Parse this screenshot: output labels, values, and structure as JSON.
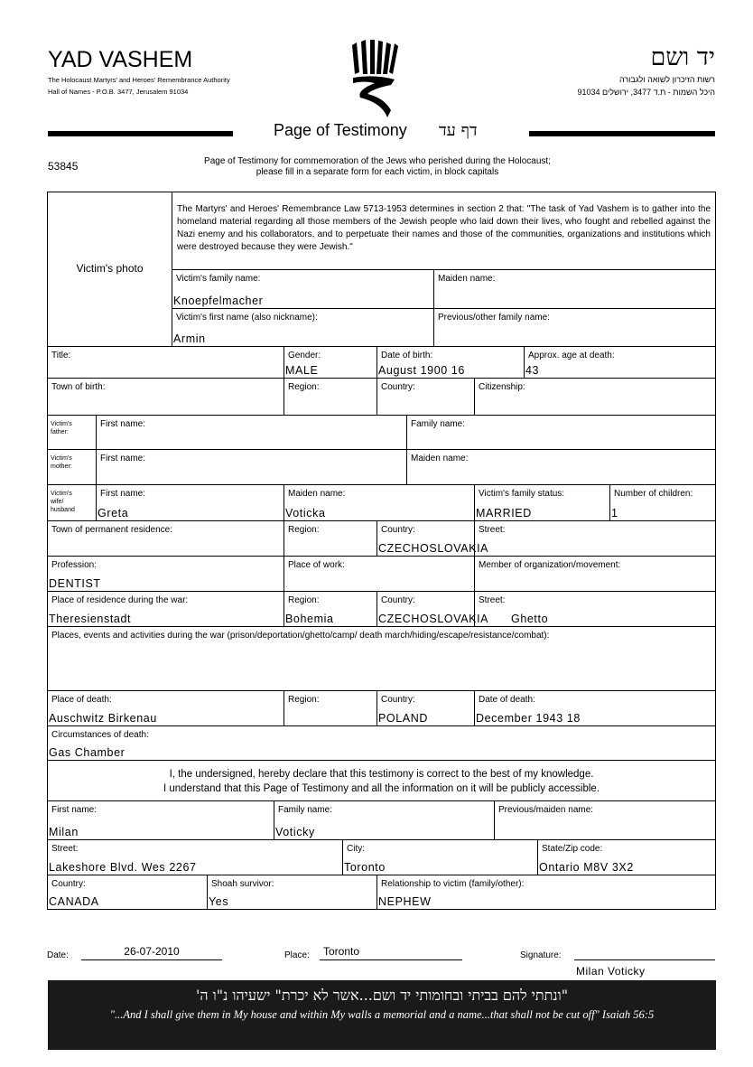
{
  "header": {
    "org_name": "YAD VASHEM",
    "org_sub1": "The Holocaust Martyrs' and Heroes' Remembrance Authority",
    "org_sub2": "Hall of Names - P.O.B. 3477, Jerusalem 91034",
    "org_name_he": "יד ושם",
    "org_sub1_he": "רשות הזיכרון לשואה ולגבורה",
    "org_sub2_he": "היכל השמות - ת.ד 3477, ירושלים 91034",
    "title": "Page of Testimony",
    "title_he": "דף עד",
    "form_number": "53845",
    "intro_line1": "Page of Testimony for commemoration of the Jews who perished during the Holocaust;",
    "intro_line2": "please fill in a separate form for each victim, in block capitals"
  },
  "victim": {
    "photo_label": "Victim's photo",
    "law_text": "The Martyrs' and Heroes' Remembrance Law 5713-1953 determines in section 2 that: \"The task of Yad Vashem is to gather into the homeland material regarding all those members of the Jewish people who laid down their lives, who fought and rebelled against the Nazi enemy and his collaborators, and to perpetuate their names and those of the communities, organizations and institutions which were destroyed because they were Jewish.\"",
    "family_name": {
      "label": "Victim's family name:",
      "value": "Knoepfelmacher"
    },
    "maiden_name": {
      "label": "Maiden name:",
      "value": ""
    },
    "first_name": {
      "label": "Victim's first name (also nickname):",
      "value": "Armin"
    },
    "previous_name": {
      "label": "Previous/other family name:",
      "value": ""
    },
    "title": {
      "label": "Title:",
      "value": ""
    },
    "gender": {
      "label": "Gender:",
      "value": "MALE"
    },
    "dob": {
      "label": "Date of birth:",
      "value": "August 1900 16"
    },
    "age": {
      "label": "Approx. age at death:",
      "value": "43"
    },
    "town_birth": {
      "label": "Town of birth:",
      "value": ""
    },
    "region_birth": {
      "label": "Region:",
      "value": ""
    },
    "country_birth": {
      "label": "Country:",
      "value": ""
    },
    "citizenship": {
      "label": "Citizenship:",
      "value": ""
    }
  },
  "family": {
    "father_label": "Victim's father:",
    "father_first": {
      "label": "First name:",
      "value": ""
    },
    "father_family": {
      "label": "Family name:",
      "value": ""
    },
    "mother_label": "Victim's mother:",
    "mother_first": {
      "label": "First name:",
      "value": ""
    },
    "mother_maiden": {
      "label": "Maiden name:",
      "value": ""
    },
    "spouse_label": "Victim's wife/ husband",
    "spouse_first": {
      "label": "First name:",
      "value": "Greta"
    },
    "spouse_maiden": {
      "label": "Maiden name:",
      "value": "Voticka"
    },
    "status": {
      "label": "Victim's family status:",
      "value": "MARRIED"
    },
    "children": {
      "label": "Number of children:",
      "value": "1"
    }
  },
  "residence": {
    "town": {
      "label": "Town of permanent residence:",
      "value": ""
    },
    "region": {
      "label": "Region:",
      "value": ""
    },
    "country": {
      "label": "Country:",
      "value": "CZECHOSLOVAKIA"
    },
    "street": {
      "label": "Street:",
      "value": ""
    },
    "profession": {
      "label": "Profession:",
      "value": "DENTIST"
    },
    "work": {
      "label": "Place of work:",
      "value": ""
    },
    "member": {
      "label": "Member of organization/movement:",
      "value": ""
    },
    "war_town": {
      "label": "Place of residence during the war:",
      "value": "Theresienstadt"
    },
    "war_region": {
      "label": "Region:",
      "value": "Bohemia"
    },
    "war_country": {
      "label": "Country:",
      "value": "CZECHOSLOVAKIA"
    },
    "war_street": {
      "label": "Street:",
      "value": "Ghetto"
    },
    "events": {
      "label": "Places, events and activities during the war (prison/deportation/ghetto/camp/ death march/hiding/escape/resistance/combat):",
      "value": ""
    }
  },
  "death": {
    "place": {
      "label": "Place of death:",
      "value": "Auschwitz Birkenau"
    },
    "region": {
      "label": "Region:",
      "value": ""
    },
    "country": {
      "label": "Country:",
      "value": "POLAND"
    },
    "date": {
      "label": "Date of death:",
      "value": "December 1943 18"
    },
    "circumstances": {
      "label": "Circumstances of death:",
      "value": "Gas Chamber"
    }
  },
  "declaration": {
    "line1": "I, the undersigned, hereby declare that this testimony is correct to the best of my knowledge.",
    "line2": "I understand that this Page of Testimony and all the information on it will be publicly accessible."
  },
  "submitter": {
    "first": {
      "label": "First name:",
      "value": "Milan"
    },
    "family": {
      "label": "Family name:",
      "value": "Voticky"
    },
    "previous": {
      "label": "Previous/maiden name:",
      "value": ""
    },
    "street": {
      "label": "Street:",
      "value": "Lakeshore Blvd. Wes 2267"
    },
    "city": {
      "label": "City:",
      "value": "Toronto"
    },
    "state": {
      "label": "State/Zip code:",
      "value": "Ontario  M8V 3X2"
    },
    "country": {
      "label": "Country:",
      "value": "CANADA"
    },
    "survivor": {
      "label": "Shoah survivor:",
      "value": "Yes"
    },
    "relationship": {
      "label": "Relationship to victim (family/other):",
      "value": "NEPHEW"
    }
  },
  "signoff": {
    "date_label": "Date:",
    "date_value": "26-07-2010",
    "place_label": "Place:",
    "place_value": "Toronto",
    "signature_label": "Signature:",
    "signature_name": "Milan Voticky"
  },
  "banner": {
    "quote_he": "\"ונתתי להם בביתי ובחומותי יד ושם...אשר לא יכרת\" ישעיהו נ\"ו ה'",
    "quote_en": "\"...And I shall give them in My house and within My walls a memorial and a name...that shall not be cut off\" Isaiah 56:5"
  }
}
